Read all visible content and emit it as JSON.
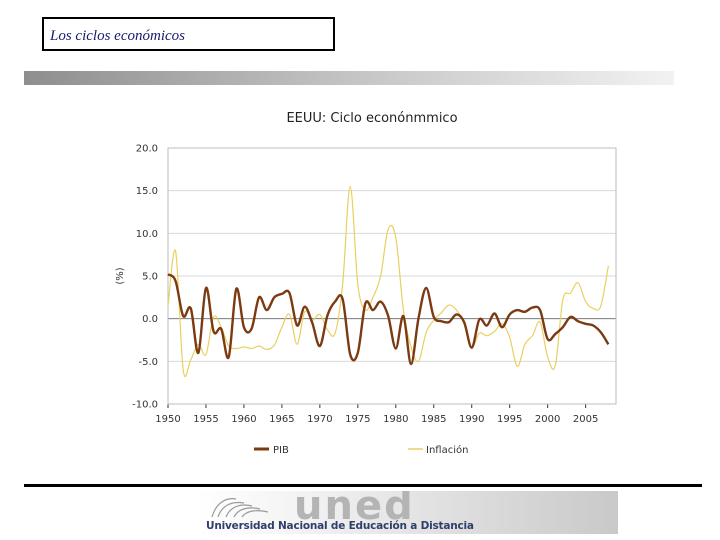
{
  "slide": {
    "title": "Los ciclos económicos"
  },
  "logo": {
    "word": "uned",
    "subtitle": "Universidad Nacional de Educación a Distancia"
  },
  "colors": {
    "pib": "#7b3a12",
    "inflacion": "#e8d060",
    "grid": "#d9d9d9",
    "axis": "#333333",
    "zero_line": "#7f7f7f"
  },
  "chart_data": {
    "type": "line",
    "title": "EEUU: Ciclo econónmmico",
    "xlabel": "",
    "ylabel": "(%)",
    "xlim": [
      1950,
      2009
    ],
    "ylim": [
      -10,
      20
    ],
    "x_ticks": [
      1950,
      1955,
      1960,
      1965,
      1970,
      1975,
      1980,
      1985,
      1990,
      1995,
      2000,
      2005
    ],
    "y_ticks": [
      "20.0",
      "15.0",
      "10.0",
      "5.0",
      "0.0",
      "-5.0",
      "-10.0"
    ],
    "y_tick_values": [
      20,
      15,
      10,
      5,
      0,
      -5,
      -10
    ],
    "grid": "horizontal",
    "legend_position": "bottom",
    "series": [
      {
        "name": "PIB",
        "x": [
          1950,
          1951,
          1952,
          1953,
          1954,
          1955,
          1956,
          1957,
          1958,
          1959,
          1960,
          1961,
          1962,
          1963,
          1964,
          1965,
          1966,
          1967,
          1968,
          1969,
          1970,
          1971,
          1972,
          1973,
          1974,
          1975,
          1976,
          1977,
          1978,
          1979,
          1980,
          1981,
          1982,
          1983,
          1984,
          1985,
          1986,
          1987,
          1988,
          1989,
          1990,
          1991,
          1992,
          1993,
          1994,
          1995,
          1996,
          1997,
          1998,
          1999,
          2000,
          2001,
          2002,
          2003,
          2004,
          2005,
          2006,
          2007,
          2008
        ],
        "values": [
          5.2,
          4.4,
          0.3,
          1.2,
          -4.0,
          3.6,
          -1.5,
          -1.2,
          -4.5,
          3.5,
          -1.0,
          -1.2,
          2.5,
          1.0,
          2.5,
          2.9,
          3.0,
          -0.8,
          1.4,
          -0.5,
          -3.2,
          0.4,
          2.0,
          2.3,
          -4.2,
          -4.0,
          1.8,
          1.0,
          2.0,
          0.3,
          -3.5,
          0.3,
          -5.3,
          0.1,
          3.6,
          0.2,
          -0.3,
          -0.4,
          0.5,
          -0.4,
          -3.4,
          -0.1,
          -0.8,
          0.6,
          -1.0,
          0.5,
          1.0,
          0.8,
          1.3,
          1.0,
          -2.4,
          -1.8,
          -1.0,
          0.2,
          -0.3,
          -0.6,
          -0.8,
          -1.6,
          -3.0
        ]
      },
      {
        "name": "Inflación",
        "x": [
          1950,
          1951,
          1952,
          1953,
          1954,
          1955,
          1956,
          1957,
          1958,
          1959,
          1960,
          1961,
          1962,
          1963,
          1964,
          1965,
          1966,
          1967,
          1968,
          1969,
          1970,
          1971,
          1972,
          1973,
          1974,
          1975,
          1976,
          1977,
          1978,
          1979,
          1980,
          1981,
          1982,
          1983,
          1984,
          1985,
          1986,
          1987,
          1988,
          1989,
          1990,
          1991,
          1992,
          1993,
          1994,
          1995,
          1996,
          1997,
          1998,
          1999,
          2000,
          2001,
          2002,
          2003,
          2004,
          2005,
          2006,
          2007,
          2008
        ],
        "values": [
          1.5,
          7.9,
          -6.0,
          -4.8,
          -3.0,
          -4.2,
          0.2,
          -1.0,
          -3.2,
          -3.5,
          -3.3,
          -3.5,
          -3.2,
          -3.6,
          -3.1,
          -1.0,
          0.5,
          -3.0,
          0.8,
          -0.2,
          0.5,
          -1.3,
          -1.7,
          4.0,
          15.5,
          4.0,
          1.0,
          2.5,
          5.0,
          10.5,
          9.5,
          1.0,
          -3.3,
          -5.0,
          -1.6,
          -0.2,
          0.7,
          1.6,
          1.0,
          -0.6,
          -3.3,
          -1.7,
          -2.0,
          -1.5,
          -0.6,
          -2.2,
          -5.6,
          -3.0,
          -2.0,
          -0.4,
          -4.5,
          -5.5,
          2.2,
          3.0,
          4.2,
          2.0,
          1.2,
          1.5,
          6.2
        ]
      }
    ]
  }
}
